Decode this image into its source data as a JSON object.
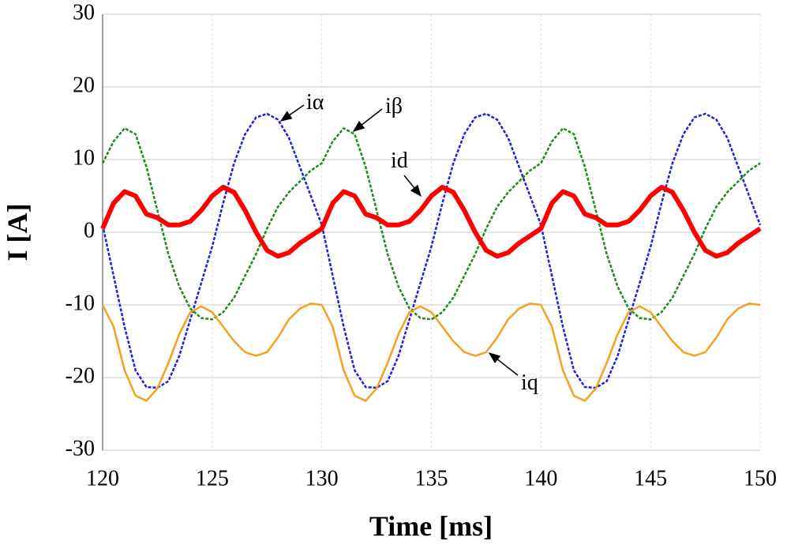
{
  "chart_data": {
    "type": "line",
    "xlabel": "Time [ms]",
    "ylabel": "I [A]",
    "xlim": [
      120,
      150
    ],
    "ylim": [
      -30,
      30
    ],
    "xticks": [
      120,
      125,
      130,
      135,
      140,
      145,
      150
    ],
    "yticks": [
      -30,
      -20,
      -10,
      0,
      10,
      20,
      30
    ],
    "grid": true,
    "x": [
      120,
      120.5,
      121,
      121.5,
      122,
      122.5,
      123,
      123.5,
      124,
      124.5,
      125,
      125.5,
      126,
      126.5,
      127,
      127.5,
      128,
      128.5,
      129,
      129.5,
      130,
      130.5,
      131,
      131.5,
      132,
      132.5,
      133,
      133.5,
      134,
      134.5,
      135,
      135.5,
      136,
      136.5,
      137,
      137.5,
      138,
      138.5,
      139,
      139.5,
      140,
      140.5,
      141,
      141.5,
      142,
      142.5,
      143,
      143.5,
      144,
      144.5,
      145,
      145.5,
      146,
      146.5,
      147,
      147.5,
      148,
      148.5,
      149,
      149.5,
      150
    ],
    "series": [
      {
        "name": "iα",
        "color": "#1f1fe0",
        "dashed": true,
        "values": [
          1,
          -6,
          -13,
          -19,
          -21.3,
          -21.4,
          -20.5,
          -17,
          -12,
          -7,
          -2,
          4,
          9.5,
          13.5,
          15.8,
          16.3,
          15.5,
          13,
          9,
          5,
          1,
          -6,
          -13,
          -19,
          -21.3,
          -21.4,
          -20.5,
          -17,
          -12,
          -7,
          -2,
          4,
          9.5,
          13.5,
          15.8,
          16.3,
          15.5,
          13,
          9,
          5,
          1,
          -6,
          -13,
          -19,
          -21.3,
          -21.4,
          -20.5,
          -17,
          -12,
          -7,
          -2,
          4,
          9.5,
          13.5,
          15.8,
          16.3,
          15.5,
          13,
          9,
          5,
          1
        ]
      },
      {
        "name": "iβ",
        "color": "#1a8c1a",
        "dashed": true,
        "values": [
          9.5,
          12.5,
          14.3,
          13.5,
          9,
          3,
          -3,
          -7.5,
          -10.5,
          -11.8,
          -12,
          -11,
          -9,
          -6,
          -3,
          0.5,
          3.5,
          5.5,
          7,
          8.5,
          9.5,
          12.5,
          14.3,
          13.5,
          9,
          3,
          -3,
          -7.5,
          -10.5,
          -11.8,
          -12,
          -11,
          -9,
          -6,
          -3,
          0.5,
          3.5,
          5.5,
          7,
          8.5,
          9.5,
          12.5,
          14.3,
          13.5,
          9,
          3,
          -3,
          -7.5,
          -10.5,
          -11.8,
          -12,
          -11,
          -9,
          -6,
          -3,
          0.5,
          3.5,
          5.5,
          7,
          8.5,
          9.5
        ]
      },
      {
        "name": "id",
        "color": "#ff0000",
        "dashed": false,
        "values": [
          0.5,
          4,
          5.6,
          5,
          2.5,
          2,
          1,
          1,
          1.5,
          3,
          5,
          6.2,
          5.5,
          3,
          0,
          -2.5,
          -3.3,
          -2.8,
          -1.5,
          -0.5,
          0.5,
          4,
          5.6,
          5,
          2.5,
          2,
          1,
          1,
          1.5,
          3,
          5,
          6.2,
          5.5,
          3,
          0,
          -2.5,
          -3.3,
          -2.8,
          -1.5,
          -0.5,
          0.5,
          4,
          5.6,
          5,
          2.5,
          2,
          1,
          1,
          1.5,
          3,
          5,
          6.2,
          5.5,
          3,
          0,
          -2.5,
          -3.3,
          -2.8,
          -1.5,
          -0.5,
          0.5
        ]
      },
      {
        "name": "iq",
        "color": "#f5a020",
        "dashed": false,
        "values": [
          -10,
          -13,
          -19,
          -22.5,
          -23.2,
          -21.5,
          -18,
          -14,
          -11,
          -10.2,
          -11,
          -13,
          -15,
          -16.5,
          -17,
          -16.5,
          -14.5,
          -12,
          -10.5,
          -9.8,
          -10,
          -13,
          -19,
          -22.5,
          -23.2,
          -21.5,
          -18,
          -14,
          -11,
          -10.2,
          -11,
          -13,
          -15,
          -16.5,
          -17,
          -16.5,
          -14.5,
          -12,
          -10.5,
          -9.8,
          -10,
          -13,
          -19,
          -22.5,
          -23.2,
          -21.5,
          -18,
          -14,
          -11,
          -10.2,
          -11,
          -13,
          -15,
          -16.5,
          -17,
          -16.5,
          -14.5,
          -12,
          -10.5,
          -9.8,
          -10
        ]
      }
    ]
  }
}
